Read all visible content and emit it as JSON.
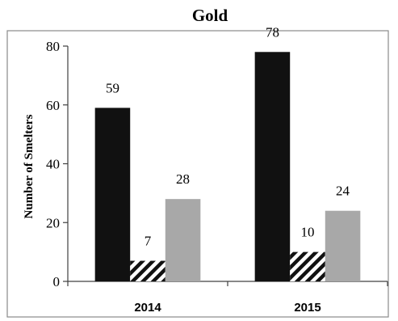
{
  "chart_data": {
    "type": "bar",
    "title": "Gold",
    "ylabel": "Number of Smelters",
    "xlabel": "",
    "categories": [
      "2014",
      "2015"
    ],
    "ylim": [
      0,
      80
    ],
    "yticks": [
      0,
      20,
      40,
      60,
      80
    ],
    "grid": false,
    "legend": "none",
    "series": [
      {
        "values": [
          59,
          78
        ],
        "color": "#111111",
        "pattern": "solid"
      },
      {
        "values": [
          7,
          10
        ],
        "color": "#111111",
        "pattern": "diagonal-hatch"
      },
      {
        "values": [
          28,
          24
        ],
        "color": "#a8a8a8",
        "pattern": "solid"
      }
    ]
  }
}
